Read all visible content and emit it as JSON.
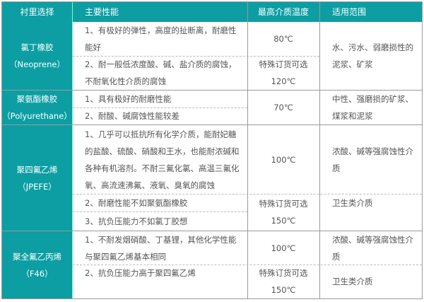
{
  "header": {
    "col1": "衬里选择",
    "col2": "主要性能",
    "col3": "最高介质温度",
    "col4": "适用范围"
  },
  "rows": [
    {
      "name": "氯丁橡胶",
      "code": "（Neoprene）",
      "props": [
        "1、有极好的弹性，高度的扯断离，耐磨性能好",
        "2、耐一般低浓度酸、碱、盐介质的腐蚀，不耐氧化性介质的腐蚀"
      ],
      "temps": [
        "80℃",
        "特殊订货可选",
        "120℃"
      ],
      "scope": [
        "水、污水、弱磨损性的泥浆、矿浆"
      ]
    },
    {
      "name": "聚氨酯橡胶",
      "code": "（Polyurethane）",
      "props": [
        "1、具有极好的耐磨性能",
        "2、耐酸、碱腐蚀性能较差"
      ],
      "temps": [
        "70℃"
      ],
      "scope": [
        "中性、强磨损的矿浆、煤浆和泥浆"
      ]
    },
    {
      "name": "聚四氟乙烯",
      "code": "（JPEFE）",
      "props": [
        "1、几乎可以抵抗所有化学介质，能耐妃糖的盐酸、硫酸、硝酸和王水，也能耐浓碱和各种有机溶剂。不耐三氟化氯、高温三氟化氧、高流速沸氟、液氧、臭氧的腐蚀",
        "2、耐磨性能不如聚氨酯橡胶",
        "3、抗负压能力不如氯丁胶想"
      ],
      "temps": [
        "100℃",
        "特殊订货可选",
        "150℃"
      ],
      "scope": [
        "浓酸、碱等强腐蚀性介质",
        "卫生类介质"
      ]
    },
    {
      "name": "聚全氟乙丙烯",
      "code": "（F46）",
      "props": [
        "1、不耐发烟硝酸、丁基锂，其他化学性能与聚四氟乙烯基本相同",
        "2、抗负压能力高于聚四氟乙烯"
      ],
      "temps": [
        "100℃",
        "特殊订货可选",
        "150℃"
      ],
      "scope": [
        "浓酸、碱等强腐蚀性介质",
        "卫生类介质"
      ]
    }
  ]
}
